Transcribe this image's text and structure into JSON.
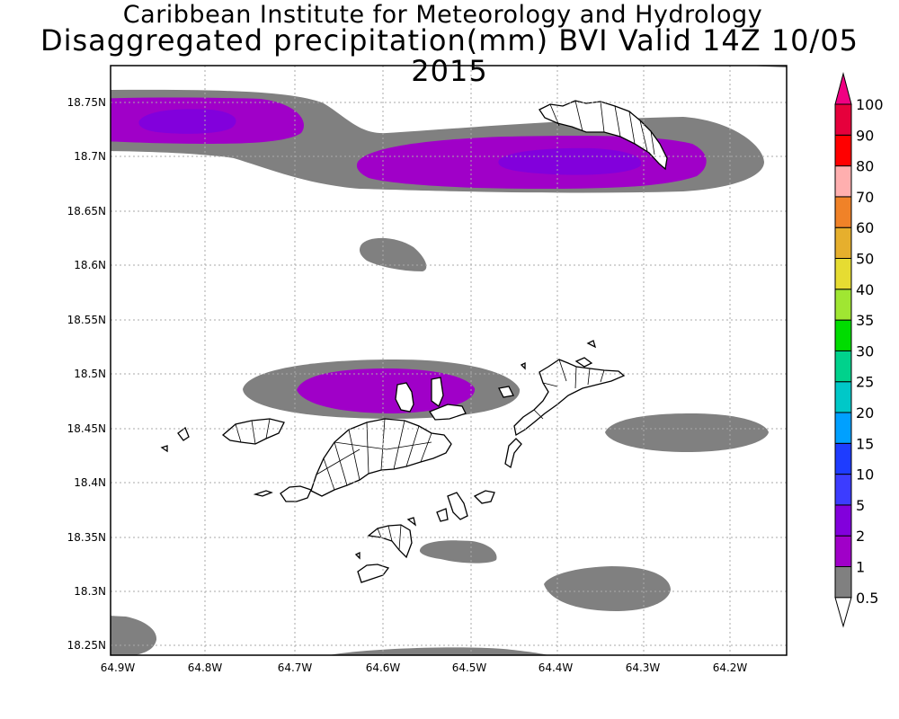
{
  "title": {
    "line1": "Caribbean Institute for Meteorology and Hydrology",
    "line2": "Disaggregated precipitation(mm) BVI Valid 14Z 10/05 2015"
  },
  "map": {
    "lat_ticks": [
      "18.75N",
      "18.7N",
      "18.65N",
      "18.6N",
      "18.55N",
      "18.5N",
      "18.45N",
      "18.4N",
      "18.35N",
      "18.3N",
      "18.25N"
    ],
    "lon_ticks": [
      "64.9W",
      "64.8W",
      "64.7W",
      "64.6W",
      "64.5W",
      "64.4W",
      "64.3W",
      "64.2W"
    ],
    "lon_range": [
      -64.9,
      -64.15
    ],
    "lat_range": [
      18.24,
      18.785
    ],
    "colors": {
      "band_0_5_1": "#808080",
      "band_1_2": "#a000c8",
      "band_2_5": "#8200dc",
      "coast": "#000000",
      "grid": "#aaaaaa"
    }
  },
  "colorbar": {
    "labels": [
      "0.5",
      "1",
      "2",
      "5",
      "10",
      "15",
      "20",
      "25",
      "30",
      "35",
      "40",
      "50",
      "60",
      "70",
      "80",
      "90",
      "100"
    ],
    "colors": [
      "#ffffff",
      "#808080",
      "#a000c8",
      "#8200dc",
      "#3c3cff",
      "#1e3cff",
      "#00a0ff",
      "#00c8c8",
      "#00d28c",
      "#00dc00",
      "#a0e632",
      "#e6dc32",
      "#e6af2d",
      "#f08228",
      "#ffafaf",
      "#ff0000",
      "#e6003c",
      "#f00082"
    ]
  }
}
